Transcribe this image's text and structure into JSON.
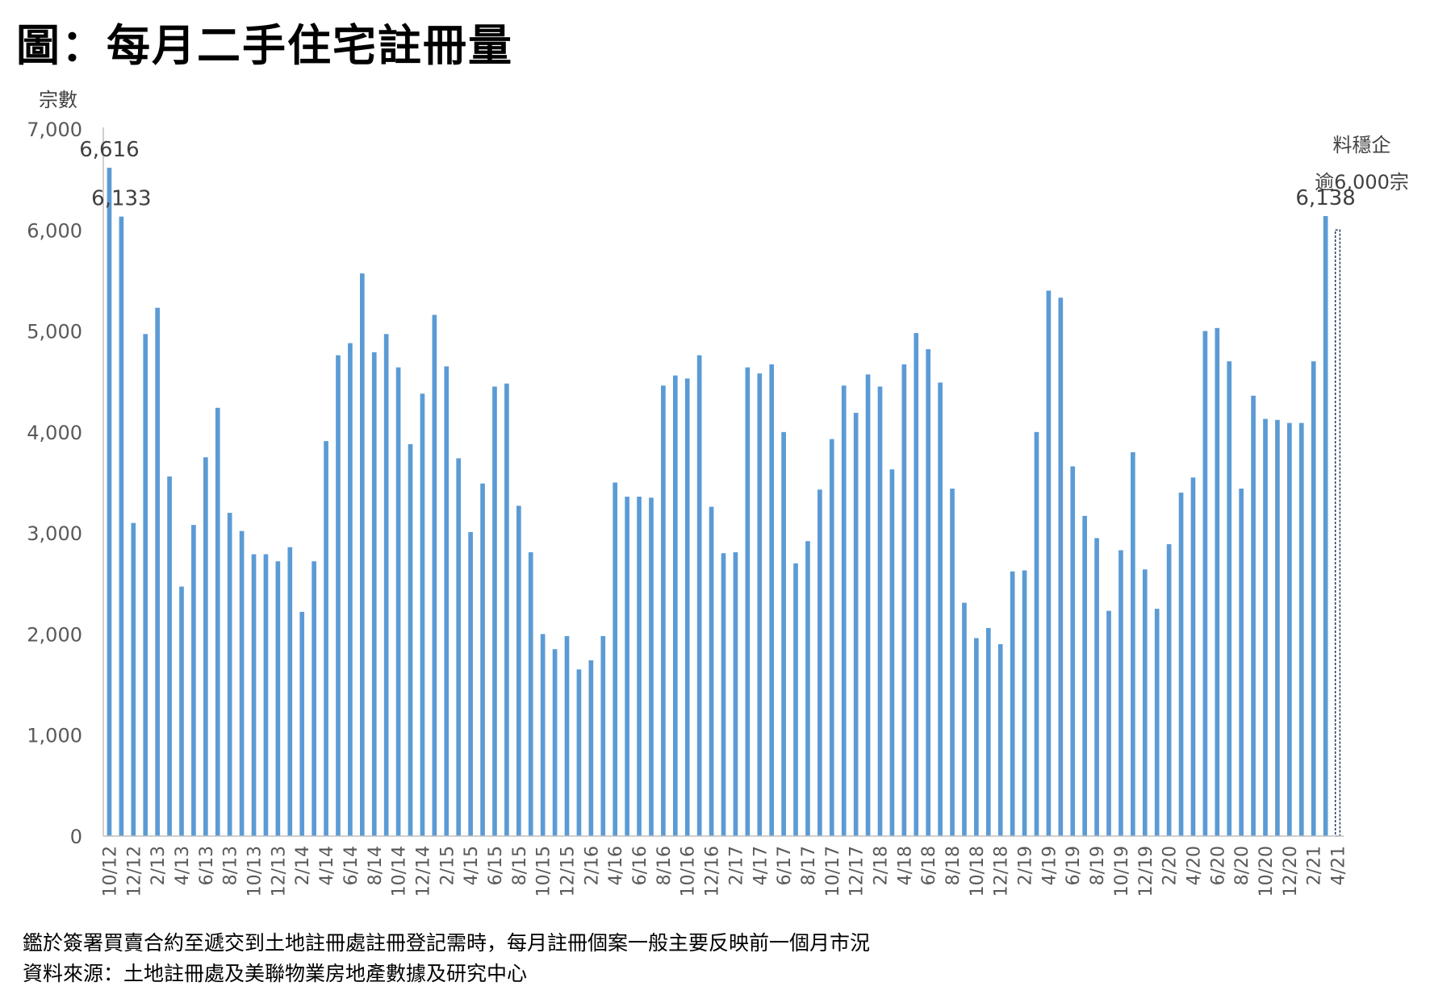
{
  "title": "圖：每月二手住宅註冊量",
  "notes": {
    "line1": "鑑於簽署買賣合約至遞交到土地註冊處註冊登記需時，每月註冊個案一般主要反映前一個月市況",
    "line2": "資料來源：土地註冊處及美聯物業房地產數據及研究中心"
  },
  "colors": {
    "bar": "#5b9bd5",
    "axis": "#bfbfbf",
    "tick_text": "#595959",
    "label_text": "#404040"
  },
  "chart_data": {
    "type": "bar",
    "ylabel": "宗數",
    "ylim": [
      0,
      7000
    ],
    "yticks": [
      0,
      1000,
      2000,
      3000,
      4000,
      5000,
      6000,
      7000
    ],
    "ytick_labels": [
      "0",
      "1,000",
      "2,000",
      "3,000",
      "4,000",
      "5,000",
      "6,000",
      "7,000"
    ],
    "x_tick_labels": [
      "10/12",
      "12/12",
      "2/13",
      "4/13",
      "6/13",
      "8/13",
      "10/13",
      "12/13",
      "2/14",
      "4/14",
      "6/14",
      "8/14",
      "10/14",
      "12/14",
      "2/15",
      "4/15",
      "6/15",
      "8/15",
      "10/15",
      "12/15",
      "2/16",
      "4/16",
      "6/16",
      "8/16",
      "10/16",
      "12/16",
      "2/17",
      "4/17",
      "6/17",
      "8/17",
      "10/17",
      "12/17",
      "2/18",
      "4/18",
      "6/18",
      "8/18",
      "10/18",
      "12/18",
      "2/19",
      "4/19",
      "6/19",
      "8/19",
      "10/19",
      "12/19",
      "2/20",
      "4/20",
      "6/20",
      "8/20",
      "10/20",
      "12/20",
      "2/21",
      "4/21"
    ],
    "categories": [
      "10/12",
      "11/12",
      "12/12",
      "1/13",
      "2/13",
      "3/13",
      "4/13",
      "5/13",
      "6/13",
      "7/13",
      "8/13",
      "9/13",
      "10/13",
      "11/13",
      "12/13",
      "1/14",
      "2/14",
      "3/14",
      "4/14",
      "5/14",
      "6/14",
      "7/14",
      "8/14",
      "9/14",
      "10/14",
      "11/14",
      "12/14",
      "1/15",
      "2/15",
      "3/15",
      "4/15",
      "5/15",
      "6/15",
      "7/15",
      "8/15",
      "9/15",
      "10/15",
      "11/15",
      "12/15",
      "1/16",
      "2/16",
      "3/16",
      "4/16",
      "5/16",
      "6/16",
      "7/16",
      "8/16",
      "9/16",
      "10/16",
      "11/16",
      "12/16",
      "1/17",
      "2/17",
      "3/17",
      "4/17",
      "5/17",
      "6/17",
      "7/17",
      "8/17",
      "9/17",
      "10/17",
      "11/17",
      "12/17",
      "1/18",
      "2/18",
      "3/18",
      "4/18",
      "5/18",
      "6/18",
      "7/18",
      "8/18",
      "9/18",
      "10/18",
      "11/18",
      "12/18",
      "1/19",
      "2/19",
      "3/19",
      "4/19",
      "5/19",
      "6/19",
      "7/19",
      "8/19",
      "9/19",
      "10/19",
      "11/19",
      "12/19",
      "1/20",
      "2/20",
      "3/20",
      "4/20",
      "5/20",
      "6/20",
      "7/20",
      "8/20",
      "9/20",
      "10/20",
      "11/20",
      "12/20",
      "1/21",
      "2/21",
      "3/21",
      "4/21"
    ],
    "values": [
      6616,
      6133,
      3100,
      4970,
      5230,
      3560,
      2470,
      3080,
      3750,
      4240,
      3200,
      3020,
      2790,
      2790,
      2720,
      2860,
      2220,
      2720,
      3910,
      4760,
      4880,
      5570,
      4790,
      4970,
      4640,
      3880,
      4380,
      5160,
      4650,
      3740,
      3010,
      3490,
      4450,
      4480,
      3270,
      2810,
      2000,
      1850,
      1980,
      1650,
      1740,
      1980,
      3500,
      3360,
      3360,
      3350,
      4460,
      4560,
      4530,
      4760,
      3260,
      2800,
      2810,
      4640,
      4580,
      4670,
      4000,
      2700,
      2920,
      3430,
      3930,
      4460,
      4190,
      4570,
      4450,
      3630,
      4670,
      4980,
      4820,
      4490,
      3440,
      2310,
      1960,
      2060,
      1900,
      2620,
      2630,
      4000,
      5400,
      5330,
      3660,
      3170,
      2950,
      2230,
      2830,
      3800,
      2640,
      2250,
      2890,
      3400,
      3550,
      5000,
      5030,
      4700,
      3440,
      4360,
      4130,
      4120,
      4090,
      4090,
      4700,
      6138,
      6000
    ],
    "projected": {
      "category": "4/21",
      "value": 6000,
      "label_line1": "料穩企",
      "label_line2": "逾6,000宗"
    },
    "data_labels": [
      {
        "category": "10/12",
        "text": "6,616"
      },
      {
        "category": "11/12",
        "text": "6,133"
      },
      {
        "category": "3/21",
        "text": "6,138"
      }
    ]
  }
}
